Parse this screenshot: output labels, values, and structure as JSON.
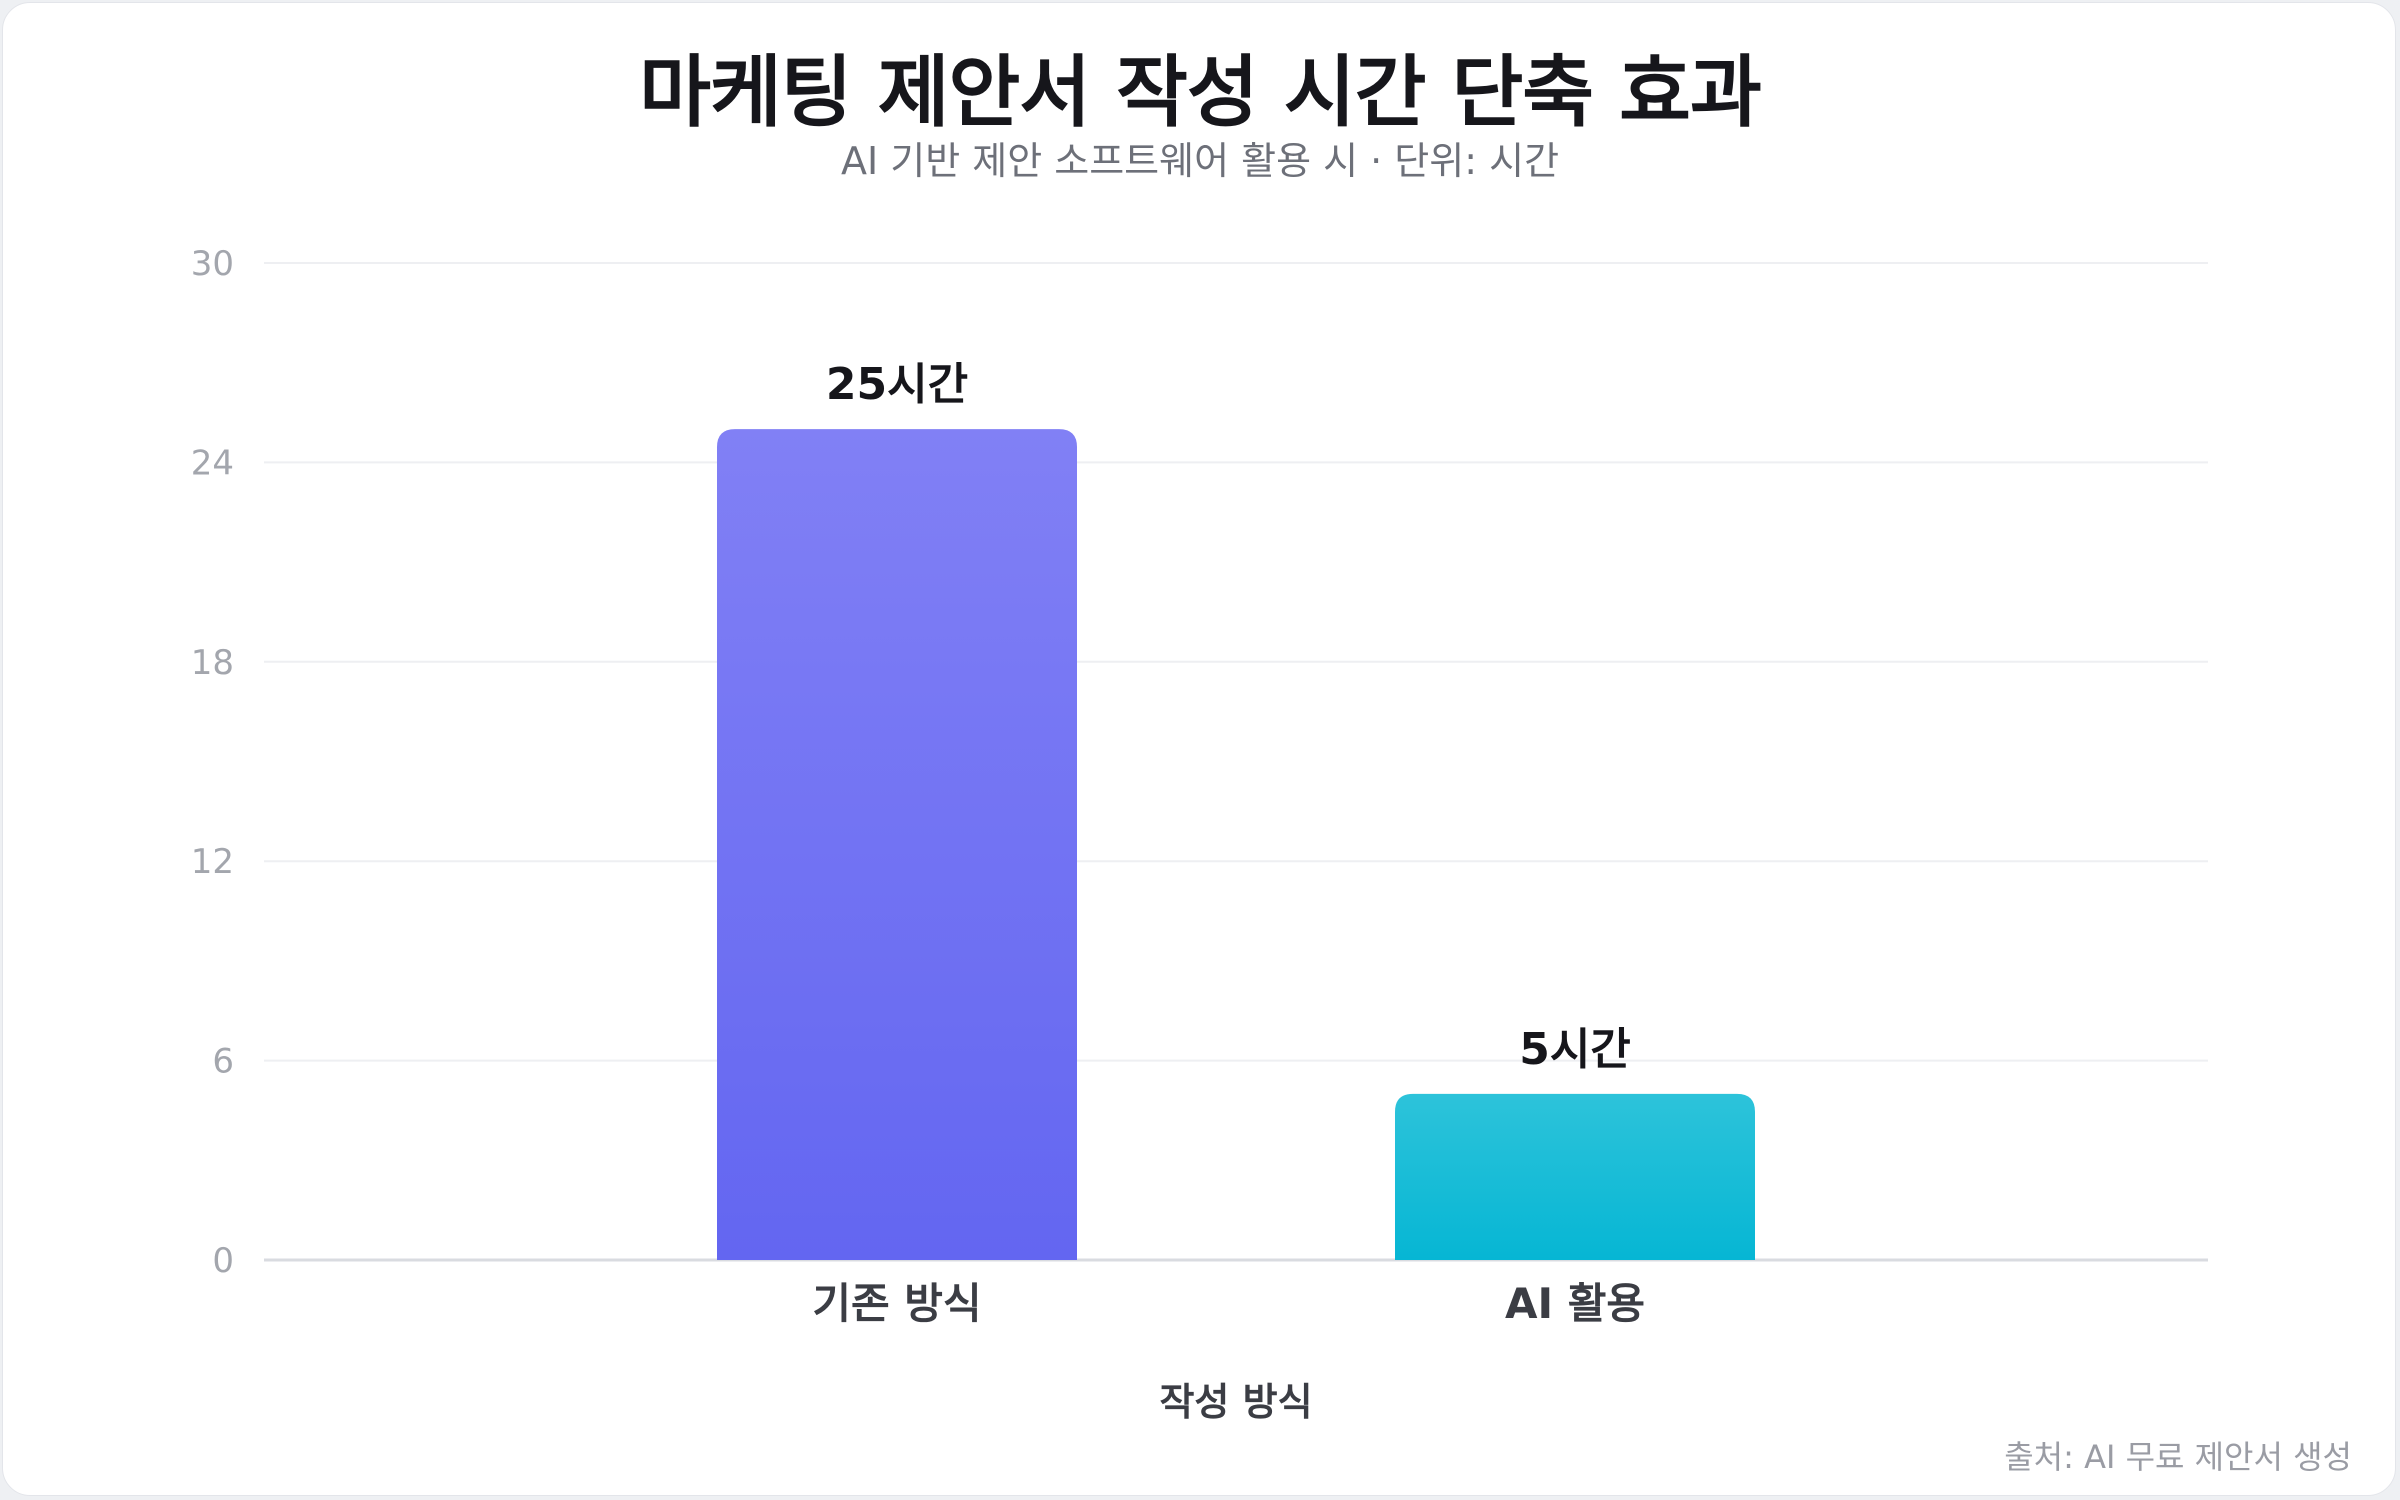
{
  "title": "마케팅 제안서 작성 시간 단축 효과",
  "subtitle": "AI 기반 제안 소프트웨어 활용 시 · 단위: 시간",
  "source": "출처: AI 무료 제안서 생성",
  "colors": {
    "bar1_top": "#8180f5",
    "bar1_bottom": "#6366f1",
    "bar2_top": "#2dc3da",
    "bar2_bottom": "#06b6d4",
    "grid": "#eeeff2",
    "axis": "#d9dbe0",
    "tick_text": "#a3a6ad",
    "label_text": "#3b3d44",
    "value_text": "#16161b"
  },
  "chart_data": {
    "type": "bar",
    "categories": [
      "기존 방식",
      "AI 활용"
    ],
    "values": [
      25,
      5
    ],
    "value_labels": [
      "25시간",
      "5시간"
    ],
    "yticks": [
      0,
      6,
      12,
      18,
      24,
      30
    ],
    "ylim": [
      0,
      30
    ],
    "xlabel": "작성 방식",
    "ylabel": "",
    "grid": true,
    "legend": "none"
  }
}
